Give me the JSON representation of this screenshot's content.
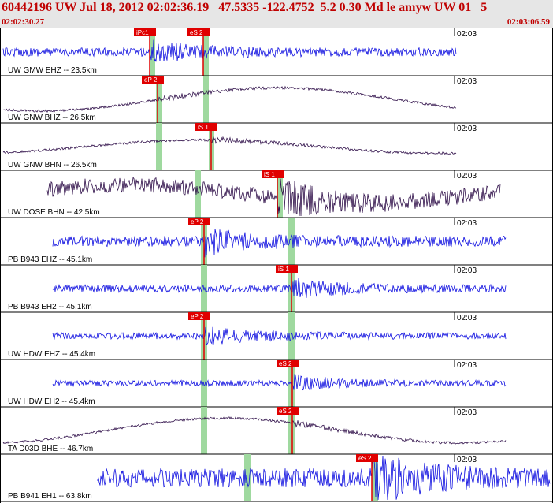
{
  "header": {
    "title": "60442196 UW Jul 18, 2012 02:02:36.19   47.5335 -122.4752  5.2 0.30 Md le amyw UW 01   5",
    "start_time": "02:02:30.27",
    "end_time": "02:03:06.59"
  },
  "colors": {
    "blue": "#1010e0",
    "purple": "#30104a",
    "pick": "#e00000",
    "band": "#9fd99f"
  },
  "tick_label": "02:03",
  "traces": [
    {
      "label": "UW GMW EHZ -- 23.5km",
      "color": "blue",
      "start": 0.0,
      "end": 0.83,
      "amp": 0.18,
      "slow": 0.0,
      "picks": [
        {
          "text": "iPc1"
        },
        {
          "text": "eS 2"
        }
      ]
    },
    {
      "label": "UW GNW BHZ -- 26.5km",
      "color": "purple",
      "start": 0.0,
      "end": 0.83,
      "amp": 0.05,
      "slow": 0.7,
      "picks": [
        {
          "text": "eP 2"
        }
      ]
    },
    {
      "label": "UW GNW BHN -- 26.5km",
      "color": "purple",
      "start": 0.0,
      "end": 0.83,
      "amp": 0.05,
      "slow": 0.4,
      "picks": [
        {
          "text": "iS 1"
        }
      ]
    },
    {
      "label": "UW DOSE BHN -- 42.5km",
      "color": "purple",
      "start": 0.08,
      "end": 0.91,
      "amp": 0.32,
      "slow": 0.55,
      "picks": [
        {
          "text": "iS 1"
        }
      ]
    },
    {
      "label": "PB B943 EHZ -- 45.1km",
      "color": "blue",
      "start": 0.09,
      "end": 0.92,
      "amp": 0.22,
      "slow": 0.0,
      "picks": [
        {
          "text": "eP 2"
        }
      ]
    },
    {
      "label": "PB B943 EH2 -- 45.1km",
      "color": "blue",
      "start": 0.09,
      "end": 0.92,
      "amp": 0.16,
      "slow": 0.0,
      "picks": [
        {
          "text": "iS 1"
        }
      ]
    },
    {
      "label": "UW HDW EHZ -- 45.4km",
      "color": "blue",
      "start": 0.09,
      "end": 0.92,
      "amp": 0.14,
      "slow": 0.0,
      "picks": [
        {
          "text": "eP 2"
        }
      ]
    },
    {
      "label": "UW HDW EH2 -- 45.4km",
      "color": "blue",
      "start": 0.09,
      "end": 0.92,
      "amp": 0.12,
      "slow": 0.0,
      "picks": [
        {
          "text": "eS 2"
        }
      ]
    },
    {
      "label": "TA D03D BHE -- 46.7km",
      "color": "purple",
      "start": 0.0,
      "end": 0.92,
      "amp": 0.05,
      "slow": 0.75,
      "picks": [
        {
          "text": "eS 2"
        }
      ]
    },
    {
      "label": "PB B941 EH1 -- 63.8km",
      "color": "blue",
      "start": 0.17,
      "end": 1.0,
      "amp": 0.4,
      "slow": 0.0,
      "picks": [
        {
          "text": "eS 2"
        }
      ]
    }
  ]
}
